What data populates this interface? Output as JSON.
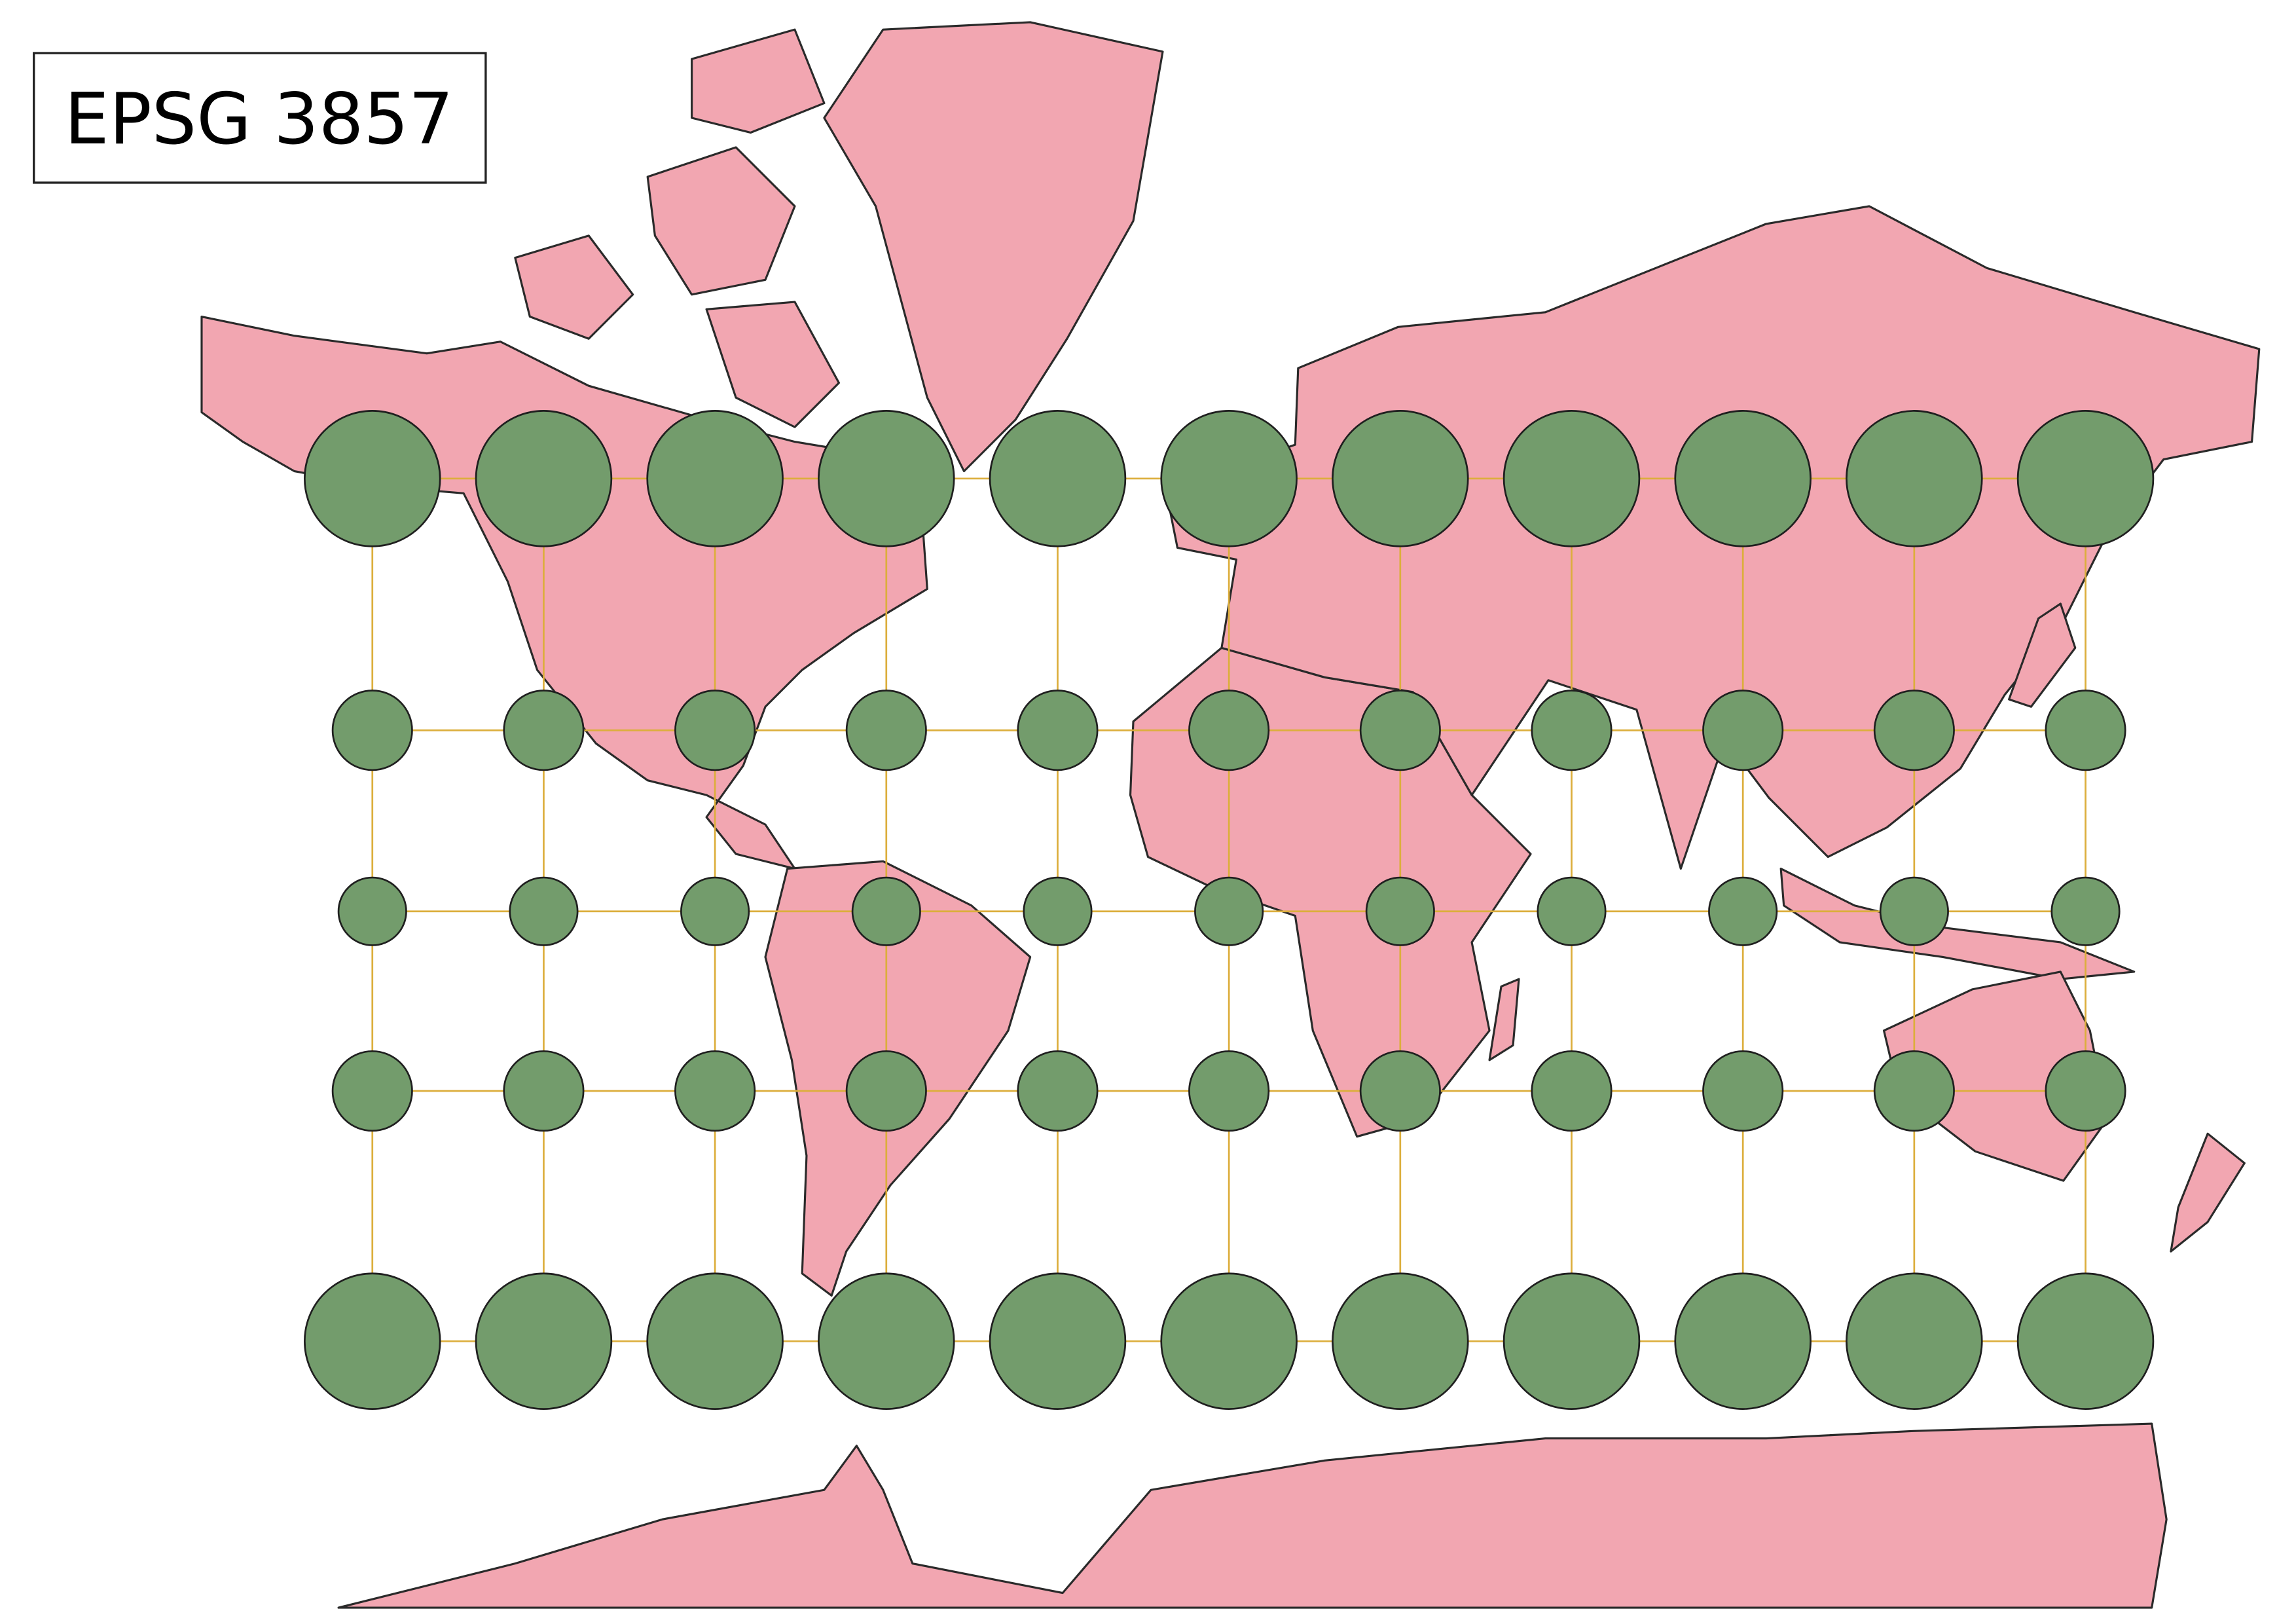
{
  "label": {
    "text": "EPSG 3857"
  }
}
